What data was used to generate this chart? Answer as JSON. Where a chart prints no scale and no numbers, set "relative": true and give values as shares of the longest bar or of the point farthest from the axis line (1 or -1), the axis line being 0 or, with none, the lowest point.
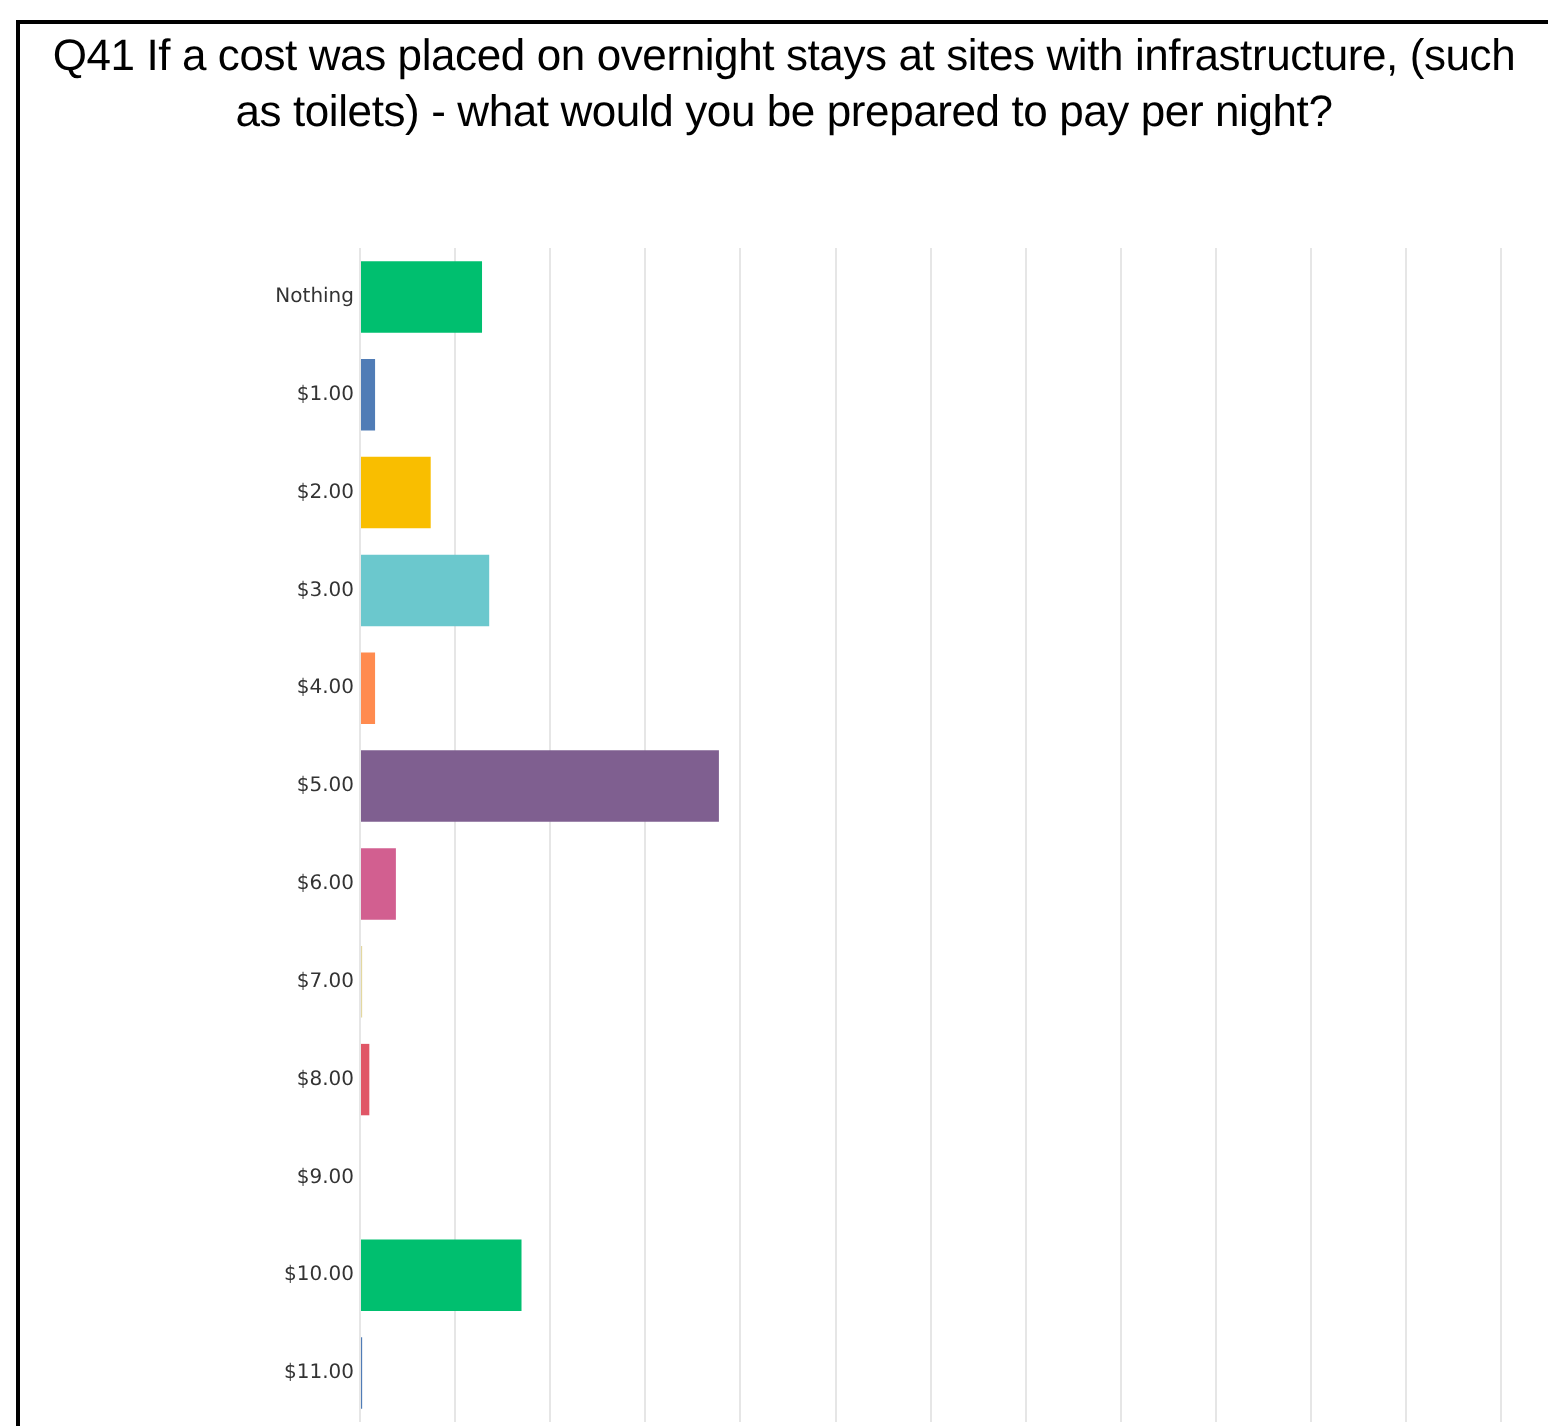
{
  "chart_data": {
    "type": "bar",
    "orientation": "horizontal",
    "relative": true,
    "title": "Q41 If a cost was placed on overnight stays at sites with infrastructure, (such as toilets) - what would you be prepared to pay per night?",
    "categories": [
      "Nothing",
      "$1.00",
      "$2.00",
      "$3.00",
      "$4.00",
      "$5.00",
      "$6.00",
      "$7.00",
      "$8.00",
      "$9.00",
      "$10.00",
      "$11.00"
    ],
    "values": [
      0.34,
      0.042,
      0.197,
      0.36,
      0.042,
      1,
      0.1,
      0.006,
      0.026,
      0,
      0.45,
      0.006
    ],
    "colors": [
      "#00bf6f",
      "#507cb6",
      "#f9be00",
      "#6bc8cd",
      "#ff8b4f",
      "#7f5f90",
      "#d25f90",
      "#e3d8a0",
      "#e05666",
      "#c4c4c4",
      "#00bf6f",
      "#507cb6"
    ],
    "grid": "x",
    "legend": false
  }
}
